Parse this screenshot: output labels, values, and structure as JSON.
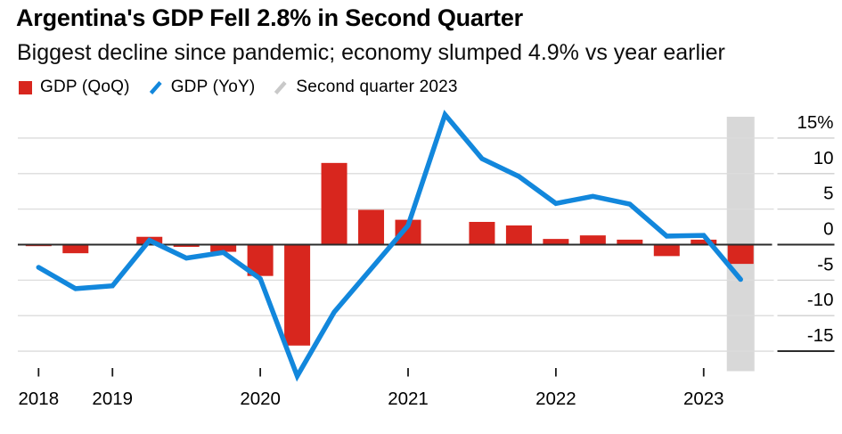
{
  "header": {
    "title": "Argentina's GDP Fell 2.8% in Second Quarter",
    "subtitle": "Biggest decline since pandemic; economy slumped 4.9% vs year earlier"
  },
  "legend": {
    "items": [
      {
        "label": "GDP (QoQ)",
        "swatch": "square",
        "color_key": "bar_red"
      },
      {
        "label": "GDP (YoY)",
        "swatch": "slash",
        "color_key": "line_blue"
      },
      {
        "label": "Second quarter 2023",
        "swatch": "slash",
        "color_key": "band_gray_legend"
      }
    ]
  },
  "colors": {
    "bar_red": "#d8261e",
    "line_blue": "#1287dc",
    "band_gray": "#d8d8d8",
    "band_gray_legend": "#c9c9c9",
    "gridline": "#dcdcdc",
    "axis_tick_light": "#cfcfcf",
    "zero_line": "#2b2b2b",
    "x_tick": "#1a1a1a",
    "axis_text": "#000000"
  },
  "chart_data": {
    "type": "bar+line",
    "title": "Argentina's GDP Fell 2.8% in Second Quarter",
    "subtitle": "Biggest decline since pandemic; economy slumped 4.9% vs year earlier",
    "categories": [
      "2018 Q3",
      "2018 Q4",
      "2019 Q1",
      "2019 Q2",
      "2019 Q3",
      "2019 Q4",
      "2020 Q1",
      "2020 Q2",
      "2020 Q3",
      "2020 Q4",
      "2021 Q1",
      "2021 Q2",
      "2021 Q3",
      "2021 Q4",
      "2022 Q1",
      "2022 Q2",
      "2022 Q3",
      "2022 Q4",
      "2023 Q1",
      "2023 Q2"
    ],
    "series": [
      {
        "name": "GDP (QoQ)",
        "type": "bar",
        "values": [
          -0.3,
          -1.3,
          -0.2,
          1.1,
          -0.4,
          -1.1,
          -4.5,
          -14.3,
          11.5,
          4.9,
          3.5,
          -0.1,
          3.2,
          2.7,
          0.8,
          1.3,
          0.7,
          -1.7,
          0.7,
          -2.8
        ]
      },
      {
        "name": "GDP (YoY)",
        "type": "line",
        "values": [
          -3.2,
          -6.2,
          -5.8,
          0.6,
          -1.9,
          -1.1,
          -4.8,
          -18.5,
          -9.5,
          -3.4,
          2.7,
          18.3,
          12.1,
          9.6,
          5.8,
          6.8,
          5.7,
          1.2,
          1.3,
          -4.9
        ]
      }
    ],
    "highlight": {
      "label": "Second quarter 2023",
      "category": "2023 Q2"
    },
    "x_axis": {
      "ticks": [
        {
          "label": "2018",
          "quarter_index": 0
        },
        {
          "label": "2019",
          "quarter_index": 2
        },
        {
          "label": "2020",
          "quarter_index": 6
        },
        {
          "label": "2021",
          "quarter_index": 10
        },
        {
          "label": "2022",
          "quarter_index": 14
        },
        {
          "label": "2023",
          "quarter_index": 18
        }
      ]
    },
    "y_axis": {
      "position": "right",
      "unit": "%",
      "ticks": [
        {
          "value": 15,
          "label": "15%"
        },
        {
          "value": 10,
          "label": "10"
        },
        {
          "value": 5,
          "label": "5"
        },
        {
          "value": 0,
          "label": "0"
        },
        {
          "value": -5,
          "label": "-5"
        },
        {
          "value": -10,
          "label": "-10"
        },
        {
          "value": -15,
          "label": "-15"
        }
      ]
    },
    "ylim": [
      -19,
      19
    ],
    "grid": true,
    "legend_position": "top"
  }
}
